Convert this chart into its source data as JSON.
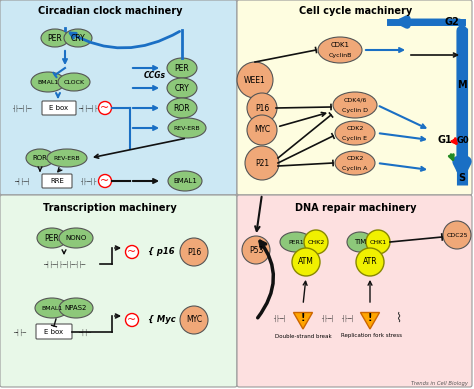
{
  "bg_color": "#ffffff",
  "quad_colors": {
    "top_left": "#cce8f4",
    "top_right": "#fefde0",
    "bottom_left": "#e8f8e8",
    "bottom_right": "#fde0e0"
  },
  "quad_titles": {
    "top_left": "Circadian clock machinery",
    "top_right": "Cell cycle machinery",
    "bottom_left": "Transcription machinery",
    "bottom_right": "DNA repair machinery"
  },
  "node_green": "#8dc87a",
  "node_salmon": "#f0a878",
  "node_yellow": "#f0f000",
  "footer": "Trends in Cell Biology",
  "blue": "#1a6fc4",
  "black": "#111111",
  "red": "#cc0000",
  "green_arrow": "#228B22"
}
